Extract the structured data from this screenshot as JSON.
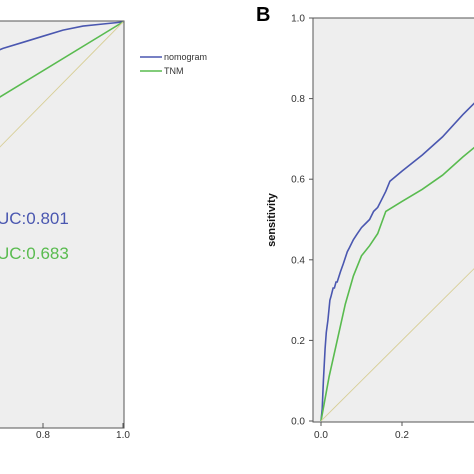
{
  "figure": {
    "panel_b_letter": "B",
    "colors": {
      "nomogram": "#4a57b0",
      "tnm": "#59bb4f",
      "reference": "#d8cf98",
      "plot_bg": "#eeeeee",
      "axis": "#555555"
    }
  },
  "chart_data": [
    {
      "panel": "A (partial, cropped at left)",
      "type": "line",
      "xlim": [
        0.0,
        1.0
      ],
      "ylim": [
        0.0,
        1.0
      ],
      "x_tick_labels": [
        "0.8",
        "1.0"
      ],
      "legend": {
        "placement": "top-right",
        "entries": [
          "nomogram",
          "TNM"
        ]
      },
      "annotations": [
        "UC:0.801",
        "UC:0.683"
      ],
      "grid": false,
      "series": [
        {
          "name": "nomogram",
          "color": "#4a57b0",
          "x": [
            0.55,
            0.6,
            0.65,
            0.7,
            0.75,
            0.8,
            0.85,
            0.9,
            0.95,
            1.0
          ],
          "y": [
            0.87,
            0.89,
            0.915,
            0.935,
            0.95,
            0.965,
            0.98,
            0.99,
            0.995,
            1.0
          ]
        },
        {
          "name": "TNM",
          "color": "#59bb4f",
          "x": [
            0.55,
            1.0
          ],
          "y": [
            0.73,
            1.0
          ]
        },
        {
          "name": "",
          "color": "#d8cf98",
          "x": [
            0.55,
            1.0
          ],
          "y": [
            0.55,
            1.0
          ]
        }
      ]
    },
    {
      "panel": "B",
      "type": "line",
      "xlim": [
        0.0,
        1.0
      ],
      "ylim": [
        0.0,
        1.0
      ],
      "ylabel": "sensitivity",
      "x_tick_labels": [
        "0.0",
        "0.2"
      ],
      "y_tick_labels": [
        "0.0",
        "0.2",
        "0.4",
        "0.6",
        "0.8",
        "1.0"
      ],
      "grid": false,
      "series": [
        {
          "name": "nomogram",
          "color": "#4a57b0",
          "x": [
            0.0,
            0.003,
            0.006,
            0.01,
            0.013,
            0.017,
            0.022,
            0.025,
            0.03,
            0.033,
            0.037,
            0.04,
            0.048,
            0.055,
            0.065,
            0.07,
            0.08,
            0.09,
            0.1,
            0.11,
            0.12,
            0.13,
            0.14,
            0.15,
            0.16,
            0.17,
            0.2,
            0.25,
            0.3,
            0.35,
            0.38
          ],
          "y": [
            0.0,
            0.03,
            0.1,
            0.18,
            0.22,
            0.25,
            0.3,
            0.31,
            0.33,
            0.33,
            0.345,
            0.345,
            0.37,
            0.39,
            0.42,
            0.43,
            0.45,
            0.465,
            0.48,
            0.49,
            0.5,
            0.52,
            0.53,
            0.55,
            0.57,
            0.595,
            0.62,
            0.66,
            0.705,
            0.76,
            0.79
          ]
        },
        {
          "name": "TNM",
          "color": "#59bb4f",
          "x": [
            0.0,
            0.02,
            0.04,
            0.06,
            0.08,
            0.1,
            0.12,
            0.14,
            0.16,
            0.2,
            0.25,
            0.3,
            0.35,
            0.38
          ],
          "y": [
            0.0,
            0.11,
            0.2,
            0.29,
            0.36,
            0.41,
            0.435,
            0.465,
            0.52,
            0.545,
            0.575,
            0.61,
            0.655,
            0.68
          ]
        },
        {
          "name": "",
          "color": "#d8cf98",
          "x": [
            0.0,
            0.38
          ],
          "y": [
            0.0,
            0.38
          ]
        }
      ]
    }
  ]
}
